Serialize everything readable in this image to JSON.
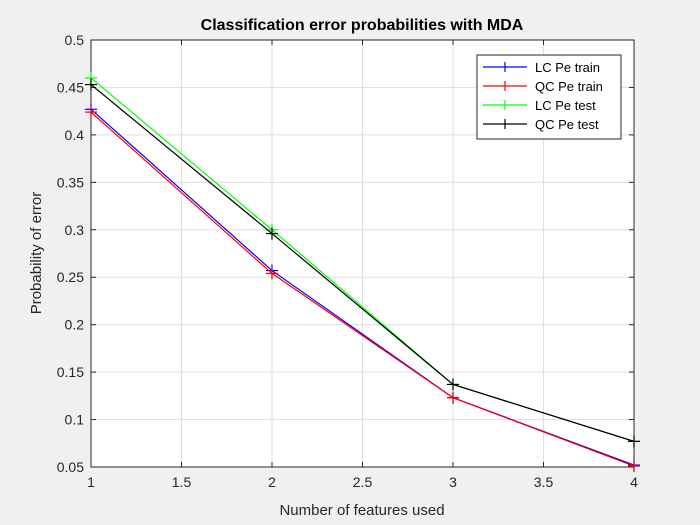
{
  "chart_data": {
    "type": "line",
    "title": "Classification error probabilities with MDA",
    "xlabel": "Number of features used",
    "ylabel": "Probability of error",
    "xlim": [
      1,
      4
    ],
    "ylim": [
      0.05,
      0.5
    ],
    "xticks": [
      1,
      1.5,
      2,
      2.5,
      3,
      3.5,
      4
    ],
    "yticks": [
      0.05,
      0.1,
      0.15,
      0.2,
      0.25,
      0.3,
      0.35,
      0.4,
      0.45,
      0.5
    ],
    "xtick_labels": [
      "1",
      "1.5",
      "2",
      "2.5",
      "3",
      "3.5",
      "4"
    ],
    "ytick_labels": [
      "0.05",
      "0.1",
      "0.15",
      "0.2",
      "0.25",
      "0.3",
      "0.35",
      "0.4",
      "0.45",
      "0.5"
    ],
    "grid": true,
    "legend_position": "top-right",
    "marker": "+",
    "x": [
      1,
      2,
      3,
      4
    ],
    "series": [
      {
        "name": "LC Pe train",
        "color": "#0000ff",
        "values": [
          0.427,
          0.257,
          0.123,
          0.052
        ]
      },
      {
        "name": "QC Pe train",
        "color": "#ff0000",
        "values": [
          0.424,
          0.254,
          0.123,
          0.051
        ]
      },
      {
        "name": "LC Pe test",
        "color": "#00ff00",
        "values": [
          0.46,
          0.3,
          0.137,
          0.077
        ]
      },
      {
        "name": "QC Pe test",
        "color": "#000000",
        "values": [
          0.453,
          0.296,
          0.137,
          0.077
        ]
      }
    ]
  }
}
